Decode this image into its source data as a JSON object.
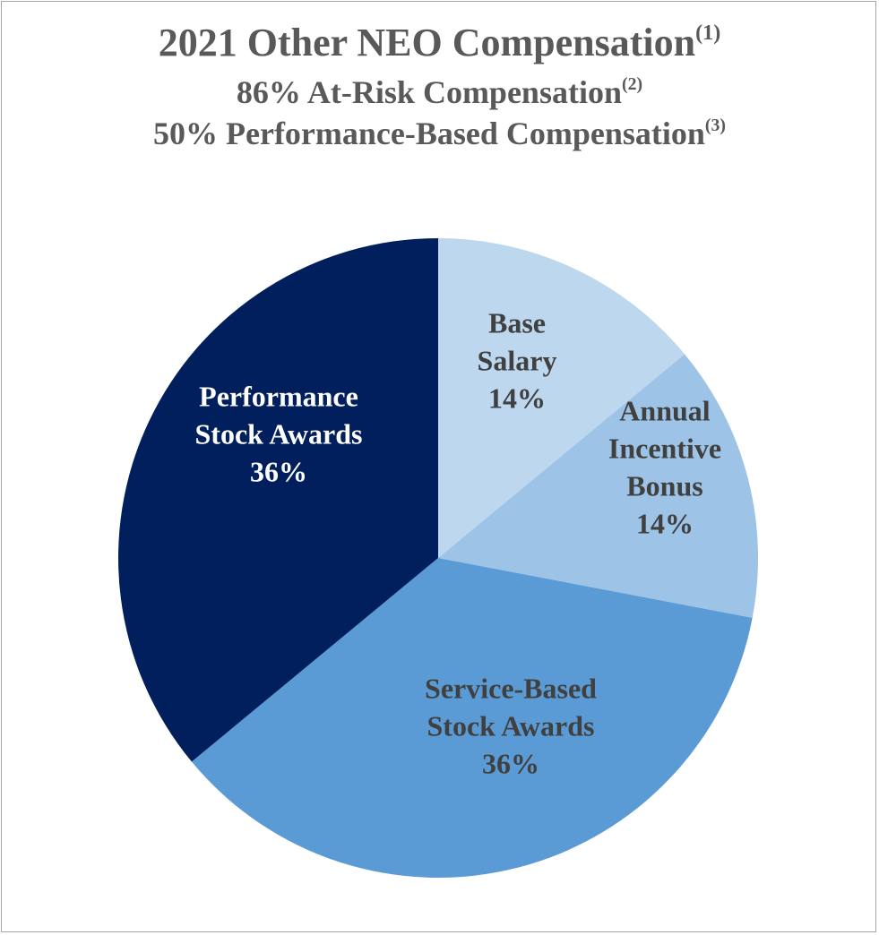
{
  "chart_data": {
    "type": "pie",
    "title": "2021 Other NEO Compensation",
    "title_sup": "(1)",
    "subtitles": [
      {
        "text": "86% At-Risk Compensation",
        "sup": "(2)"
      },
      {
        "text": "50% Performance-Based Compensation",
        "sup": "(3)"
      }
    ],
    "slices": [
      {
        "name": "Base Salary",
        "label_lines": [
          "Base",
          "Salary",
          "14%"
        ],
        "value": 14,
        "color": "#bdd7ee",
        "text_color": "#404040"
      },
      {
        "name": "Annual Incentive Bonus",
        "label_lines": [
          "Annual",
          "Incentive",
          "Bonus",
          "14%"
        ],
        "value": 14,
        "color": "#9dc3e6",
        "text_color": "#404040"
      },
      {
        "name": "Service-Based Stock Awards",
        "label_lines": [
          "Service-Based",
          "Stock Awards",
          "36%"
        ],
        "value": 36,
        "color": "#5b9bd5",
        "text_color": "#404040"
      },
      {
        "name": "Performance Stock Awards",
        "label_lines": [
          "Performance",
          "Stock Awards",
          "36%"
        ],
        "value": 36,
        "color": "#001f5c",
        "text_color": "#ffffff"
      }
    ],
    "start_angle_deg": 0,
    "direction": "clockwise"
  }
}
